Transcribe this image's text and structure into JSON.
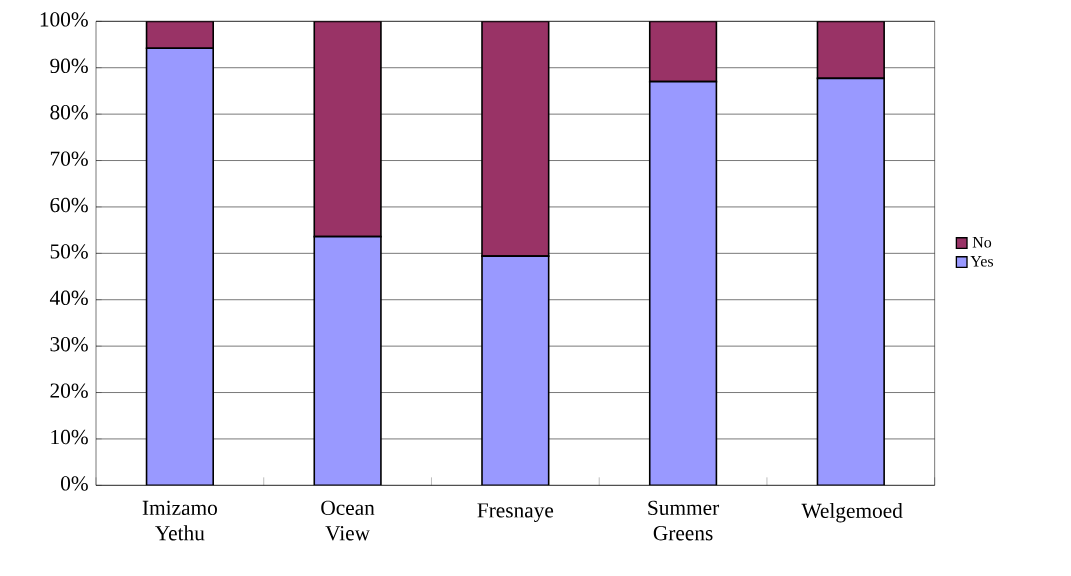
{
  "chart_data": {
    "type": "bar",
    "stacked": true,
    "categories": [
      "Imizamo Yethu",
      "Ocean View",
      "Fresnaye",
      "Summer Greens",
      "Welgemoed"
    ],
    "series": [
      {
        "name": "Yes",
        "color": "#9999ff",
        "values": [
          94.2,
          53.6,
          49.4,
          87,
          87.7
        ]
      },
      {
        "name": "No",
        "color": "#993366",
        "values": [
          5.8,
          46.4,
          50.6,
          13,
          12.3
        ]
      }
    ],
    "ylim": [
      0,
      100
    ],
    "yticks": [
      {
        "value": 0,
        "label": "0%"
      },
      {
        "value": 10,
        "label": "10%"
      },
      {
        "value": 20,
        "label": "20%"
      },
      {
        "value": 30,
        "label": "30%"
      },
      {
        "value": 40,
        "label": "40%"
      },
      {
        "value": 50,
        "label": "50%"
      },
      {
        "value": 60,
        "label": "60%"
      },
      {
        "value": 70,
        "label": "70%"
      },
      {
        "value": 80,
        "label": "80%"
      },
      {
        "value": 90,
        "label": "90%"
      },
      {
        "value": 100,
        "label": "100%"
      }
    ],
    "grid": "y",
    "legend": "right"
  }
}
